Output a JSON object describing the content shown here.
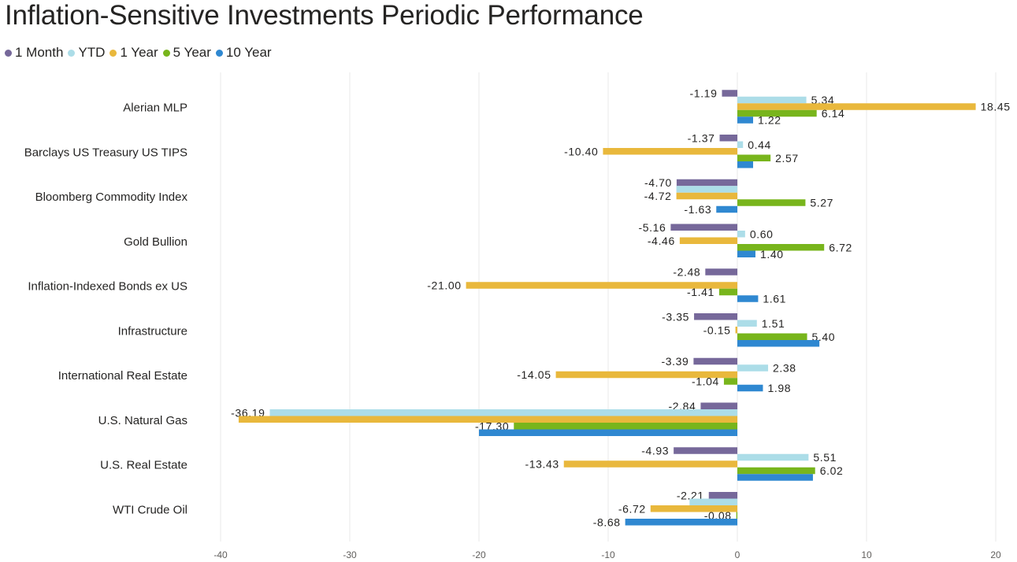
{
  "title": "Inflation-Sensitive Investments Periodic Performance",
  "chart_data": {
    "type": "bar",
    "orientation": "horizontal",
    "categories": [
      "Alerian MLP",
      "Barclays US Treasury US TIPS",
      "Bloomberg Commodity Index",
      "Gold Bullion",
      "Inflation-Indexed Bonds ex US",
      "Infrastructure",
      "International Real Estate",
      "U.S. Natural Gas",
      "U.S. Real Estate",
      "WTI Crude Oil"
    ],
    "series": [
      {
        "name": "1 Month",
        "color": "#76689a",
        "values": [
          -1.19,
          -1.37,
          -4.7,
          -5.16,
          -2.48,
          -3.35,
          -3.39,
          -2.84,
          -4.93,
          -2.21
        ]
      },
      {
        "name": "YTD",
        "color": "#acdde8",
        "values": [
          5.34,
          0.44,
          -4.72,
          0.6,
          null,
          1.51,
          2.38,
          -36.19,
          5.51,
          -3.7
        ]
      },
      {
        "name": "1 Year",
        "color": "#e9b83c",
        "values": [
          18.45,
          -10.4,
          -4.72,
          -4.46,
          -21.0,
          -0.15,
          -14.05,
          -38.6,
          -13.43,
          -6.72
        ]
      },
      {
        "name": "5 Year",
        "color": "#78b51c",
        "values": [
          6.14,
          2.57,
          5.27,
          6.72,
          -1.41,
          5.4,
          -1.04,
          -17.3,
          6.02,
          -0.08
        ]
      },
      {
        "name": "10 Year",
        "color": "#2f88d1",
        "values": [
          1.22,
          1.22,
          -1.63,
          1.4,
          1.61,
          6.35,
          1.98,
          -20.0,
          5.85,
          -8.68
        ]
      }
    ],
    "data_labels": [
      [
        "-1.19",
        "5.34",
        "18.45",
        "6.14",
        "1.22"
      ],
      [
        "-1.37",
        "0.44",
        "-10.40",
        "2.57",
        ""
      ],
      [
        "-4.70",
        "",
        "-4.72",
        "5.27",
        "-1.63"
      ],
      [
        "-5.16",
        "0.60",
        "-4.46",
        "6.72",
        "1.40"
      ],
      [
        "-2.48",
        "",
        "-21.00",
        "-1.41",
        "1.61"
      ],
      [
        "-3.35",
        "1.51",
        "-0.15",
        "5.40",
        ""
      ],
      [
        "-3.39",
        "2.38",
        "-14.05",
        "-1.04",
        "1.98"
      ],
      [
        "-2.84",
        "-36.19",
        "",
        "-17.30",
        ""
      ],
      [
        "-4.93",
        "5.51",
        "-13.43",
        "6.02",
        ""
      ],
      [
        "-2.21",
        "",
        "-6.72",
        "-0.08",
        "-8.68"
      ]
    ],
    "xticks": [
      "-40",
      "-30",
      "-20",
      "-10",
      "0",
      "10",
      "20"
    ],
    "xlim": [
      -40,
      20
    ],
    "grid": true,
    "legend_position": "top-left"
  }
}
